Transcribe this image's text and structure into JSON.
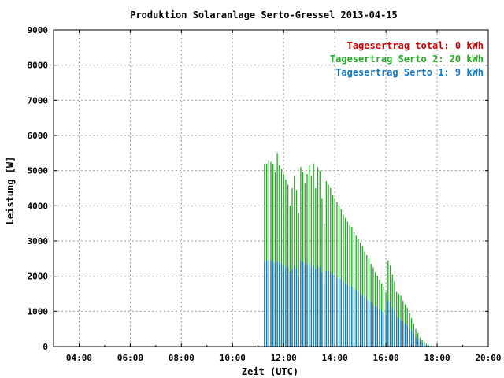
{
  "chart_data": {
    "type": "bar",
    "title": "Produktion Solaranlage Serto-Gressel 2013-04-15",
    "xlabel": "Zeit (UTC)",
    "ylabel": "Leistung [W]",
    "ylim": [
      0,
      9000
    ],
    "xlim": [
      "03:00",
      "20:00"
    ],
    "grid": true,
    "legend_position": "top-right",
    "x_ticks": [
      "04:00",
      "06:00",
      "08:00",
      "10:00",
      "12:00",
      "14:00",
      "16:00",
      "18:00",
      "20:00"
    ],
    "y_ticks": [
      "0",
      "1000",
      "2000",
      "3000",
      "4000",
      "5000",
      "6000",
      "7000",
      "8000",
      "9000"
    ],
    "legend": [
      {
        "label": "Tagesertrag total: 0 kWh",
        "color": "#cc0000"
      },
      {
        "label": "Tagesertrag Serto 2: 20 kWh",
        "color": "#22aa22"
      },
      {
        "label": "Tagesertrag Serto 1: 9 kWh",
        "color": "#1177cc"
      }
    ],
    "x": [
      "11:15",
      "11:20",
      "11:25",
      "11:30",
      "11:35",
      "11:40",
      "11:45",
      "11:50",
      "11:55",
      "12:00",
      "12:05",
      "12:10",
      "12:15",
      "12:20",
      "12:25",
      "12:30",
      "12:35",
      "12:40",
      "12:45",
      "12:50",
      "12:55",
      "13:00",
      "13:05",
      "13:10",
      "13:15",
      "13:20",
      "13:25",
      "13:30",
      "13:35",
      "13:40",
      "13:45",
      "13:50",
      "13:55",
      "14:00",
      "14:05",
      "14:10",
      "14:15",
      "14:20",
      "14:25",
      "14:30",
      "14:35",
      "14:40",
      "14:45",
      "14:50",
      "14:55",
      "15:00",
      "15:05",
      "15:10",
      "15:15",
      "15:20",
      "15:25",
      "15:30",
      "15:35",
      "15:40",
      "15:45",
      "15:50",
      "15:55",
      "16:00",
      "16:05",
      "16:10",
      "16:15",
      "16:20",
      "16:25",
      "16:30",
      "16:35",
      "16:40",
      "16:45",
      "16:50",
      "16:55",
      "17:00",
      "17:05",
      "17:10",
      "17:15",
      "17:20",
      "17:25",
      "17:30",
      "17:35",
      "17:40",
      "17:45",
      "17:50"
    ],
    "series": [
      {
        "name": "Tagesertrag Serto 2: 20 kWh",
        "color": "#22aa22",
        "values": [
          5200,
          5200,
          5300,
          5250,
          5200,
          4950,
          5500,
          5150,
          5050,
          4900,
          4750,
          4600,
          4000,
          4500,
          4850,
          4450,
          3800,
          5100,
          4950,
          4650,
          4900,
          5150,
          4850,
          5200,
          4500,
          5100,
          5000,
          4200,
          3500,
          4700,
          4600,
          4500,
          4300,
          4200,
          4100,
          4000,
          3900,
          3750,
          3650,
          3550,
          3450,
          3400,
          3250,
          3150,
          3050,
          2950,
          2850,
          2700,
          2600,
          2500,
          2350,
          2250,
          2100,
          2000,
          1900,
          1800,
          1700,
          1550,
          2450,
          2300,
          2050,
          1850,
          1550,
          1500,
          1450,
          1300,
          1200,
          1100,
          950,
          800,
          650,
          500,
          380,
          250,
          180,
          120,
          80,
          40,
          20,
          5
        ]
      },
      {
        "name": "Tagesertrag Serto 1: 9 kWh",
        "color": "#1177cc",
        "values": [
          2400,
          2450,
          2450,
          2450,
          2400,
          2350,
          2400,
          2400,
          2350,
          2300,
          2250,
          2250,
          2100,
          2200,
          2300,
          2200,
          1950,
          2450,
          2400,
          2300,
          2350,
          2350,
          2250,
          2300,
          2200,
          2300,
          2250,
          2100,
          1800,
          2150,
          2150,
          2100,
          2050,
          2000,
          1950,
          1950,
          1900,
          1850,
          1800,
          1750,
          1700,
          1700,
          1650,
          1600,
          1550,
          1500,
          1450,
          1400,
          1350,
          1300,
          1250,
          1200,
          1150,
          1100,
          1050,
          1000,
          950,
          900,
          1300,
          1250,
          1100,
          1000,
          850,
          800,
          750,
          700,
          650,
          600,
          500,
          450,
          350,
          280,
          200,
          150,
          100,
          70,
          40,
          20,
          10,
          5
        ]
      }
    ]
  }
}
